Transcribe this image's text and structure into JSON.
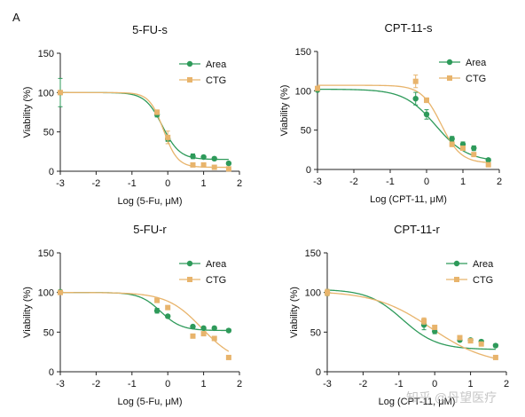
{
  "figure": {
    "panel_letter": "A",
    "watermark": "知乎 @丹望医疗",
    "colors": {
      "area": "#2e9a5a",
      "ctg": "#e8b46c",
      "axis": "#222222"
    }
  },
  "chart_data": [
    {
      "type": "scatter",
      "title": "5-FU-s",
      "xlabel": "Log (5-Fu, μM)",
      "ylabel": "Viability (%)",
      "xlim": [
        -3,
        2
      ],
      "ylim": [
        0,
        150
      ],
      "xticks": [
        -3,
        -2,
        -1,
        0,
        1,
        2
      ],
      "yticks": [
        0,
        50,
        100,
        150
      ],
      "legend": "top-right",
      "series": [
        {
          "name": "Area",
          "marker": "circle",
          "x": [
            -3,
            -0.3,
            0,
            0.7,
            1,
            1.3,
            1.7
          ],
          "y": [
            100,
            72,
            41,
            19,
            18,
            16,
            10
          ],
          "err": [
            18,
            3,
            3,
            3,
            2,
            2,
            2
          ],
          "fit": {
            "top": 100,
            "bottom": 15,
            "ec50": -0.15,
            "hill": 1.8
          }
        },
        {
          "name": "CTG",
          "marker": "square",
          "x": [
            -3,
            -0.3,
            0,
            0.7,
            1,
            1.3,
            1.7
          ],
          "y": [
            100,
            75,
            43,
            8,
            8,
            5,
            3
          ],
          "err": [
            0,
            3,
            8,
            2,
            2,
            2,
            2
          ],
          "fit": {
            "top": 100,
            "bottom": 5,
            "ec50": -0.12,
            "hill": 2.2
          }
        }
      ]
    },
    {
      "type": "scatter",
      "title": "CPT-11-s",
      "xlabel": "Log (CPT-11, μM)",
      "ylabel": "Viability (%)",
      "xlim": [
        -3,
        2
      ],
      "ylim": [
        0,
        150
      ],
      "xticks": [
        -3,
        -2,
        -1,
        0,
        1,
        2
      ],
      "yticks": [
        0,
        50,
        100,
        150
      ],
      "legend": "top-right",
      "series": [
        {
          "name": "Area",
          "marker": "circle",
          "x": [
            -3,
            -0.3,
            0,
            0.7,
            1,
            1.3,
            1.7
          ],
          "y": [
            101,
            90,
            70,
            39,
            32,
            27,
            12
          ],
          "err": [
            0,
            8,
            6,
            3,
            3,
            3,
            2
          ],
          "fit": {
            "top": 102,
            "bottom": 10,
            "ec50": 0.25,
            "hill": 1.0
          }
        },
        {
          "name": "CTG",
          "marker": "square",
          "x": [
            -3,
            -0.3,
            0,
            0.7,
            1,
            1.3,
            1.7
          ],
          "y": [
            103,
            112,
            88,
            32,
            27,
            19,
            6
          ],
          "err": [
            0,
            8,
            3,
            3,
            2,
            2,
            2
          ],
          "fit": {
            "top": 107,
            "bottom": 8,
            "ec50": 0.4,
            "hill": 1.6
          }
        }
      ]
    },
    {
      "type": "scatter",
      "title": "5-FU-r",
      "xlabel": "Log (5-Fu, μM)",
      "ylabel": "Viability (%)",
      "xlim": [
        -3,
        2
      ],
      "ylim": [
        0,
        150
      ],
      "xticks": [
        -3,
        -2,
        -1,
        0,
        1,
        2
      ],
      "yticks": [
        0,
        50,
        100,
        150
      ],
      "legend": "top-right",
      "series": [
        {
          "name": "Area",
          "marker": "circle",
          "x": [
            -3,
            -0.3,
            0,
            0.7,
            1,
            1.3,
            1.7
          ],
          "y": [
            101,
            77,
            70,
            57,
            55,
            55,
            52
          ],
          "err": [
            0,
            3,
            2,
            2,
            2,
            2,
            2
          ],
          "fit": {
            "top": 100,
            "bottom": 52,
            "ec50": -0.2,
            "hill": 1.5
          }
        },
        {
          "name": "CTG",
          "marker": "square",
          "x": [
            -3,
            -0.3,
            0,
            0.7,
            1,
            1.3,
            1.7
          ],
          "y": [
            100,
            90,
            81,
            45,
            48,
            42,
            18
          ],
          "err": [
            0,
            2,
            2,
            2,
            2,
            2,
            2
          ],
          "fit": {
            "top": 100,
            "bottom": 10,
            "ec50": 0.95,
            "hill": 0.9
          }
        }
      ]
    },
    {
      "type": "scatter",
      "title": "CPT-11-r",
      "xlabel": "Log (CPT-11, μM)",
      "ylabel": "Viability (%)",
      "xlim": [
        -3,
        2
      ],
      "ylim": [
        0,
        150
      ],
      "xticks": [
        -3,
        -2,
        -1,
        0,
        1,
        2
      ],
      "yticks": [
        0,
        50,
        100,
        150
      ],
      "legend": "top-right",
      "series": [
        {
          "name": "Area",
          "marker": "circle",
          "x": [
            -3,
            -0.3,
            0,
            0.7,
            1,
            1.3,
            1.7
          ],
          "y": [
            100,
            59,
            51,
            40,
            40,
            38,
            33
          ],
          "err": [
            4,
            6,
            3,
            2,
            2,
            2,
            2
          ],
          "fit": {
            "top": 104,
            "bottom": 28,
            "ec50": -0.9,
            "hill": 0.9
          }
        },
        {
          "name": "CTG",
          "marker": "square",
          "x": [
            -3,
            -0.3,
            0,
            0.7,
            1,
            1.3,
            1.7
          ],
          "y": [
            100,
            64,
            56,
            43,
            39,
            35,
            18
          ],
          "err": [
            4,
            4,
            2,
            2,
            2,
            2,
            2
          ],
          "fit": {
            "top": 102,
            "bottom": 8,
            "ec50": -0.1,
            "hill": 0.55
          }
        }
      ]
    }
  ]
}
